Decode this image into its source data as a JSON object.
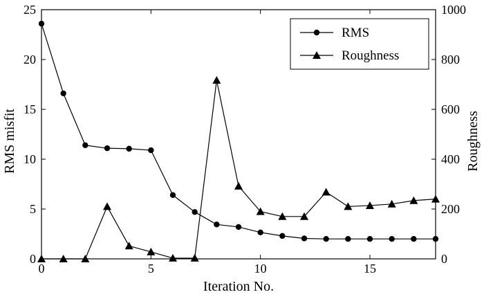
{
  "chart_data": {
    "type": "line",
    "xlabel": "Iteration No.",
    "ylabel_left": "RMS misfit",
    "ylabel_right": "Roughness",
    "xlim": [
      0,
      18
    ],
    "ylim_left": [
      0,
      25
    ],
    "ylim_right": [
      0,
      1000
    ],
    "x_ticks": [
      0,
      5,
      10,
      15
    ],
    "y_left_ticks": [
      0,
      5,
      10,
      15,
      20,
      25
    ],
    "y_right_ticks": [
      0,
      200,
      400,
      600,
      800,
      1000
    ],
    "grid": false,
    "legend_position": "top-right",
    "x": [
      0,
      1,
      2,
      3,
      4,
      5,
      6,
      7,
      8,
      9,
      10,
      11,
      12,
      13,
      14,
      15,
      16,
      17,
      18
    ],
    "series": [
      {
        "name": "RMS",
        "axis": "left",
        "marker": "circle",
        "values": [
          23.6,
          16.6,
          11.4,
          11.1,
          11.05,
          10.9,
          6.4,
          4.7,
          3.45,
          3.2,
          2.65,
          2.3,
          2.05,
          2.0,
          2.0,
          2.0,
          2.0,
          2.0,
          2.0
        ]
      },
      {
        "name": "Roughness",
        "axis": "right",
        "marker": "triangle",
        "values": [
          0,
          0,
          0,
          210,
          52,
          28,
          3,
          3,
          717,
          292,
          190,
          170,
          170,
          268,
          210,
          214,
          220,
          234,
          240
        ]
      }
    ]
  }
}
